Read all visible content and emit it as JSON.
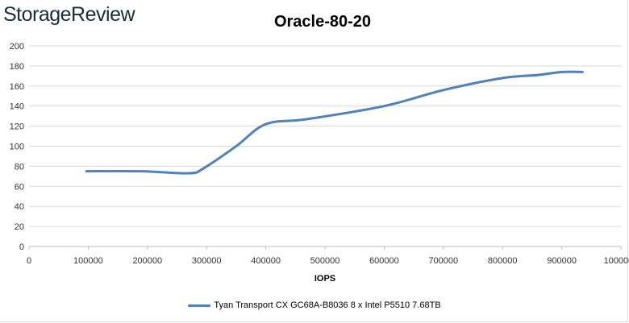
{
  "brand": "StorageReview",
  "chart_data": {
    "type": "line",
    "title": "Oracle-80-20",
    "xlabel": "IOPS",
    "ylabel": "",
    "xlim": [
      0,
      1000000
    ],
    "ylim": [
      0,
      200
    ],
    "x_ticks": [
      0,
      100000,
      200000,
      300000,
      400000,
      500000,
      600000,
      700000,
      800000,
      900000,
      1000000
    ],
    "y_ticks": [
      0,
      20,
      40,
      60,
      80,
      100,
      120,
      140,
      160,
      180,
      200
    ],
    "grid": "horizontal",
    "legend_position": "bottom",
    "series": [
      {
        "name": "Tyan Transport CX GC68A-B8036 8 x Intel P5510 7.68TB",
        "color": "#4f81bd",
        "x": [
          97000,
          190000,
          270000,
          295000,
          350000,
          400000,
          470000,
          600000,
          700000,
          800000,
          860000,
          900000,
          935000
        ],
        "y": [
          75,
          75,
          73,
          78,
          100,
          122,
          127,
          140,
          156,
          168,
          171,
          174,
          174
        ]
      }
    ]
  }
}
